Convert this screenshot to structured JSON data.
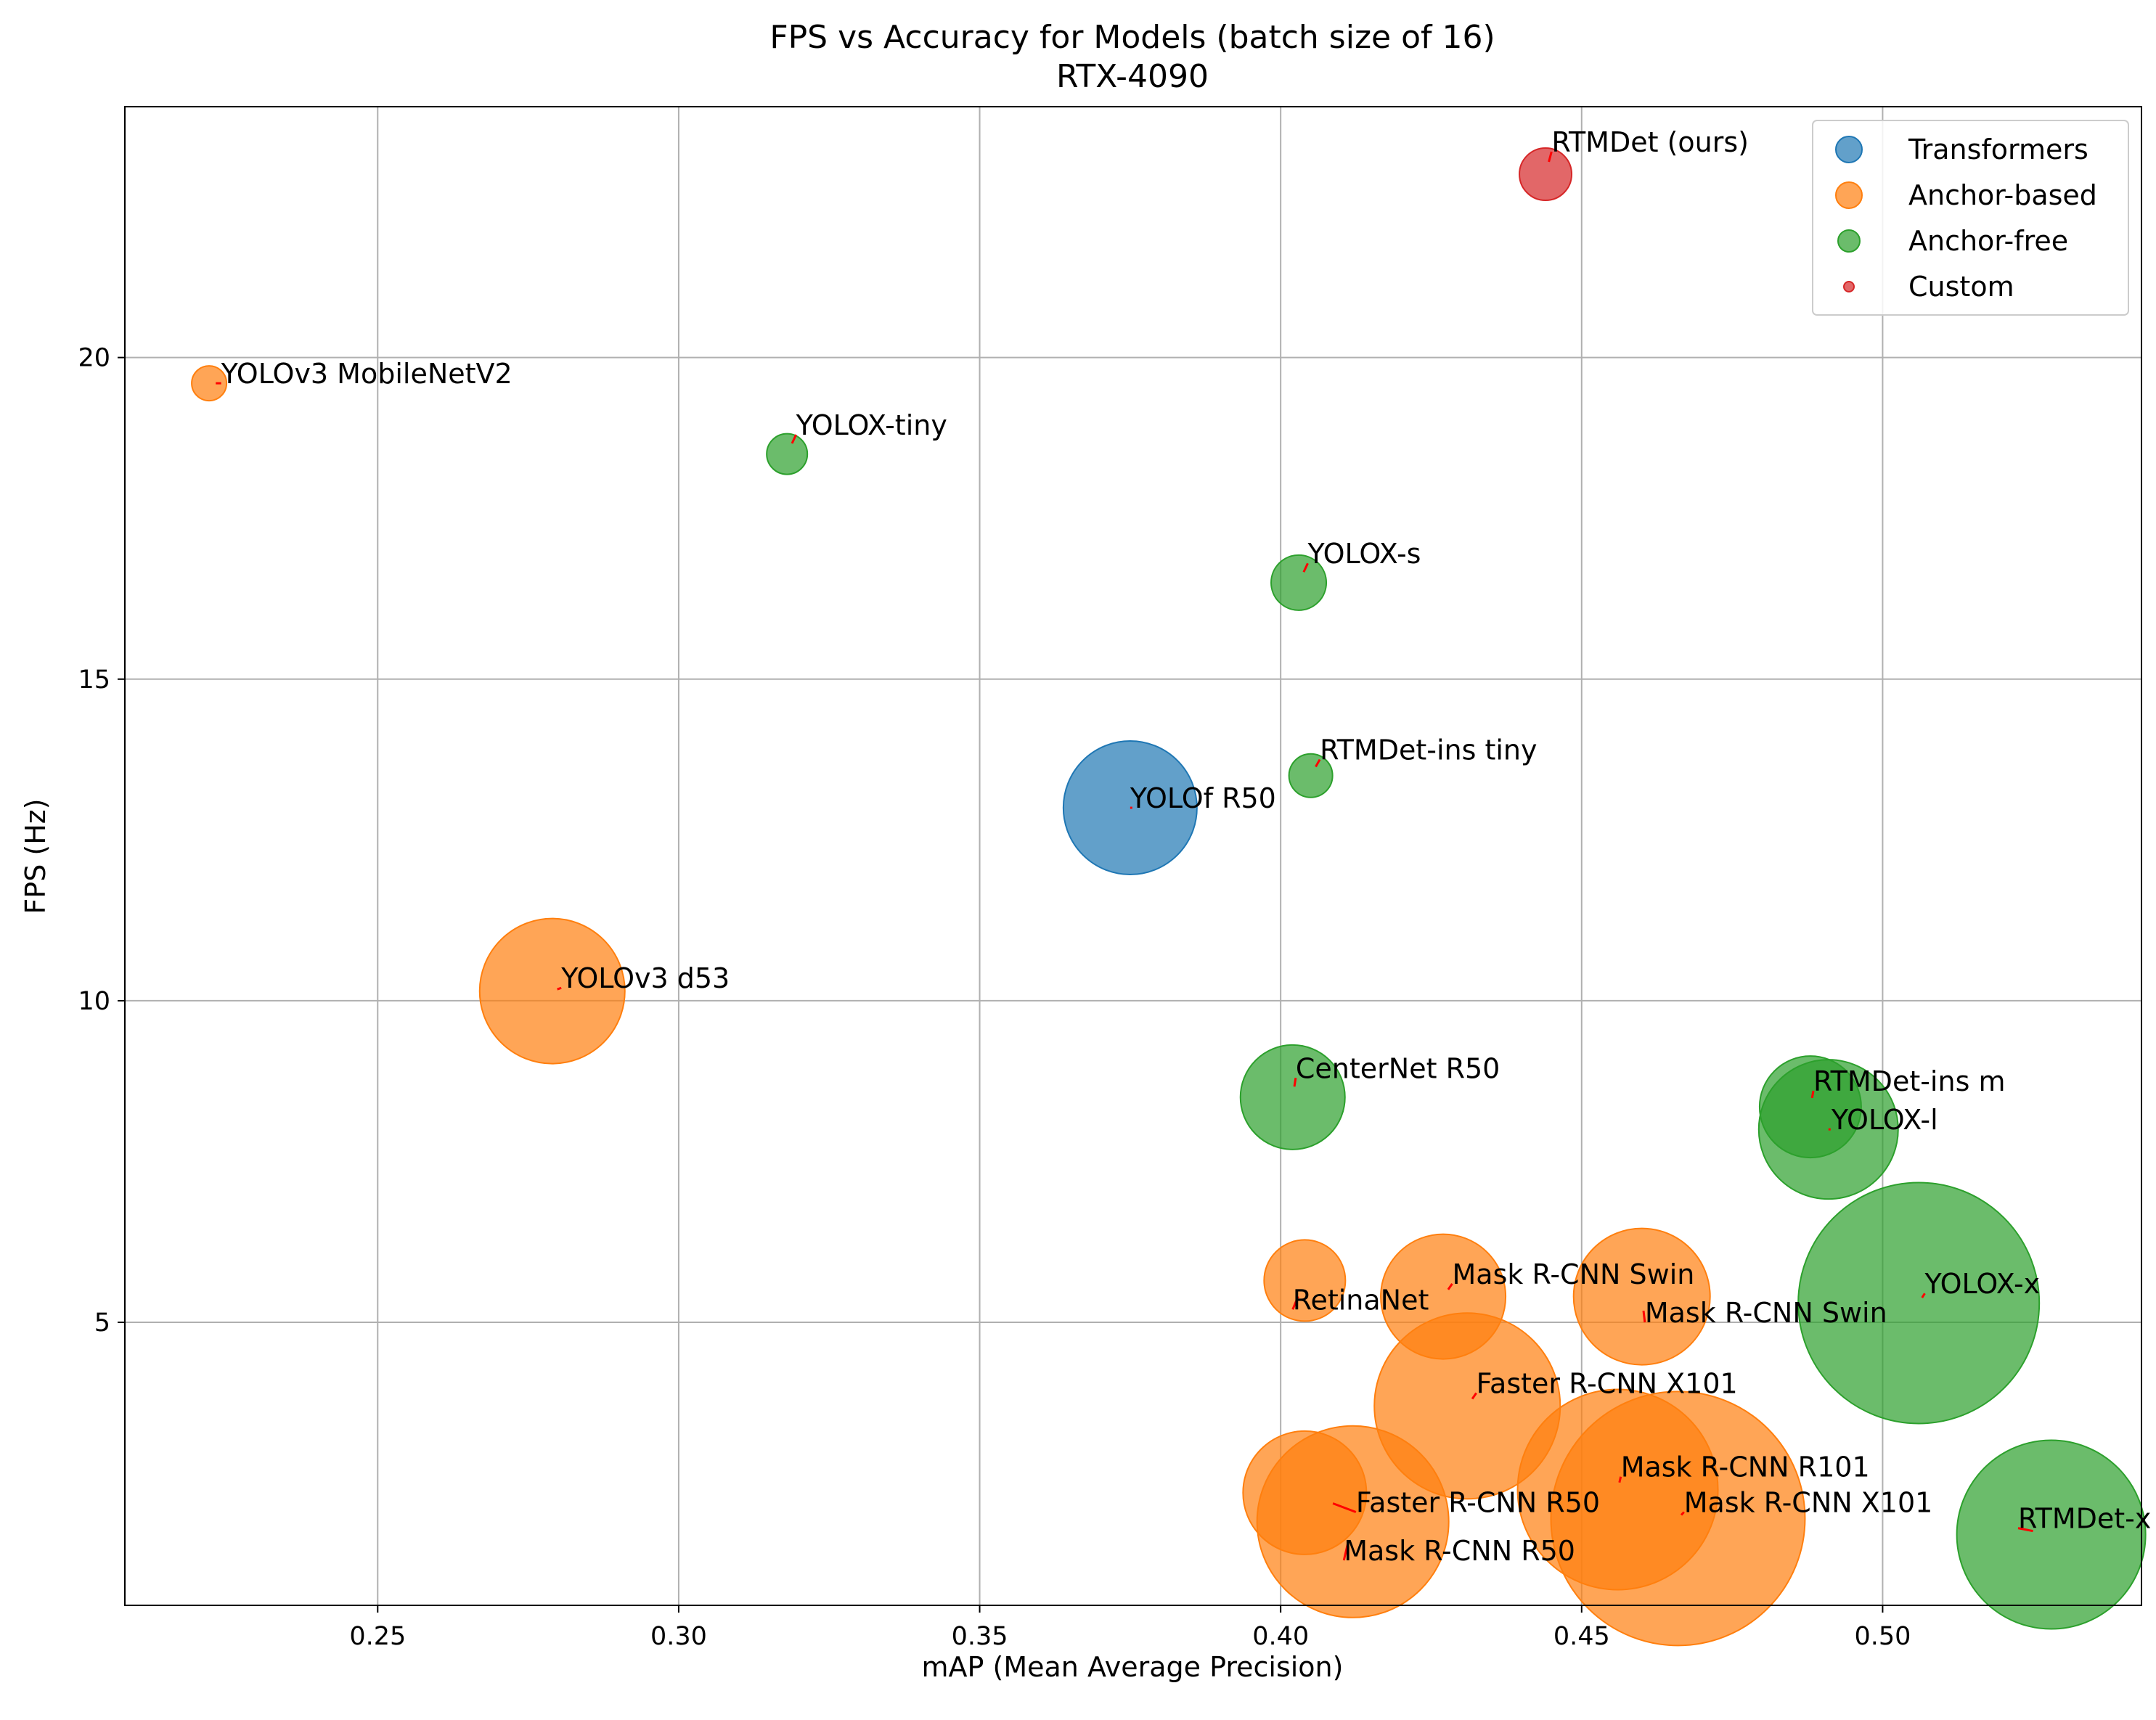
{
  "chart_data": {
    "type": "scatter",
    "title": "FPS vs Accuracy for Models (batch size of 16)",
    "subtitle": "RTX-4090",
    "xlabel": "mAP (Mean Average Precision)",
    "ylabel": "FPS (Hz)",
    "xlim": [
      0.208,
      0.543
    ],
    "ylim": [
      0.6,
      23.9
    ],
    "xticks": [
      0.25,
      0.3,
      0.35,
      0.4,
      0.45,
      0.5
    ],
    "xtick_labels": [
      "0.25",
      "0.30",
      "0.35",
      "0.40",
      "0.45",
      "0.50"
    ],
    "yticks": [
      5,
      10,
      15,
      20
    ],
    "ytick_labels": [
      "5",
      "10",
      "15",
      "20"
    ],
    "grid": true,
    "legend_position": "top-right",
    "series": [
      {
        "name": "Transformers",
        "color": "#1f77b4",
        "points": [
          {
            "label": "YOLOf R50",
            "x": 0.375,
            "y": 13.0,
            "r": 92,
            "lx": 0.375,
            "ly": 13.0,
            "lpos": "left"
          }
        ]
      },
      {
        "name": "Anchor-based",
        "color": "#ff7f0e",
        "points": [
          {
            "label": "YOLOv3 MobileNetV2",
            "x": 0.222,
            "y": 19.6,
            "r": 24,
            "lx": 0.224,
            "ly": 19.6,
            "lpos": "left"
          },
          {
            "label": "YOLOv3 d53",
            "x": 0.279,
            "y": 10.15,
            "r": 100,
            "lx": 0.2805,
            "ly": 10.2,
            "lpos": "left"
          },
          {
            "label": "RetinaNet",
            "x": 0.404,
            "y": 5.65,
            "r": 56,
            "lx": 0.402,
            "ly": 5.2,
            "lpos": "left"
          },
          {
            "label": "Mask R-CNN Swin",
            "x": 0.427,
            "y": 5.4,
            "r": 86,
            "lx": 0.4285,
            "ly": 5.6,
            "lpos": "left"
          },
          {
            "label": "Mask R-CNN Swin",
            "x": 0.46,
            "y": 5.4,
            "r": 94,
            "lx": 0.4605,
            "ly": 5.0,
            "lpos": "left"
          },
          {
            "label": "Faster R-CNN X101",
            "x": 0.431,
            "y": 3.7,
            "r": 128,
            "lx": 0.4325,
            "ly": 3.9,
            "lpos": "left"
          },
          {
            "label": "Mask R-CNN R101",
            "x": 0.456,
            "y": 2.4,
            "r": 138,
            "lx": 0.4565,
            "ly": 2.6,
            "lpos": "left"
          },
          {
            "label": "Mask R-CNN X101",
            "x": 0.466,
            "y": 1.95,
            "r": 175,
            "lx": 0.467,
            "ly": 2.05,
            "lpos": "left"
          },
          {
            "label": "Faster R-CNN R50",
            "x": 0.404,
            "y": 2.35,
            "r": 85,
            "lx": 0.4125,
            "ly": 2.05,
            "lpos": "left"
          },
          {
            "label": "Mask R-CNN R50",
            "x": 0.412,
            "y": 1.9,
            "r": 132,
            "lx": 0.4105,
            "ly": 1.3,
            "lpos": "left"
          }
        ]
      },
      {
        "name": "Anchor-free",
        "color": "#2ca02c",
        "points": [
          {
            "label": "YOLOX-tiny",
            "x": 0.318,
            "y": 18.5,
            "r": 28,
            "lx": 0.3195,
            "ly": 18.8,
            "lpos": "left"
          },
          {
            "label": "YOLOX-s",
            "x": 0.403,
            "y": 16.5,
            "r": 38,
            "lx": 0.4045,
            "ly": 16.8,
            "lpos": "left"
          },
          {
            "label": "RTMDet-ins tiny",
            "x": 0.405,
            "y": 13.5,
            "r": 30,
            "lx": 0.4065,
            "ly": 13.75,
            "lpos": "left"
          },
          {
            "label": "CenterNet R50",
            "x": 0.402,
            "y": 8.5,
            "r": 72,
            "lx": 0.4025,
            "ly": 8.8,
            "lpos": "left"
          },
          {
            "label": "RTMDet-ins m",
            "x": 0.488,
            "y": 8.35,
            "r": 70,
            "lx": 0.4885,
            "ly": 8.6,
            "lpos": "left"
          },
          {
            "label": "YOLOX-l",
            "x": 0.491,
            "y": 8.0,
            "r": 96,
            "lx": 0.4915,
            "ly": 8.0,
            "lpos": "left"
          },
          {
            "label": "YOLOX-x",
            "x": 0.506,
            "y": 5.3,
            "r": 166,
            "lx": 0.507,
            "ly": 5.45,
            "lpos": "left"
          },
          {
            "label": "RTMDet-x",
            "x": 0.528,
            "y": 1.7,
            "r": 130,
            "lx": 0.5225,
            "ly": 1.8,
            "lpos": "left"
          }
        ]
      },
      {
        "name": "Custom",
        "color": "#d62728",
        "points": [
          {
            "label": "RTMDet (ours)",
            "x": 0.444,
            "y": 22.85,
            "r": 36,
            "lx": 0.445,
            "ly": 23.2,
            "lpos": "left"
          }
        ]
      }
    ]
  }
}
